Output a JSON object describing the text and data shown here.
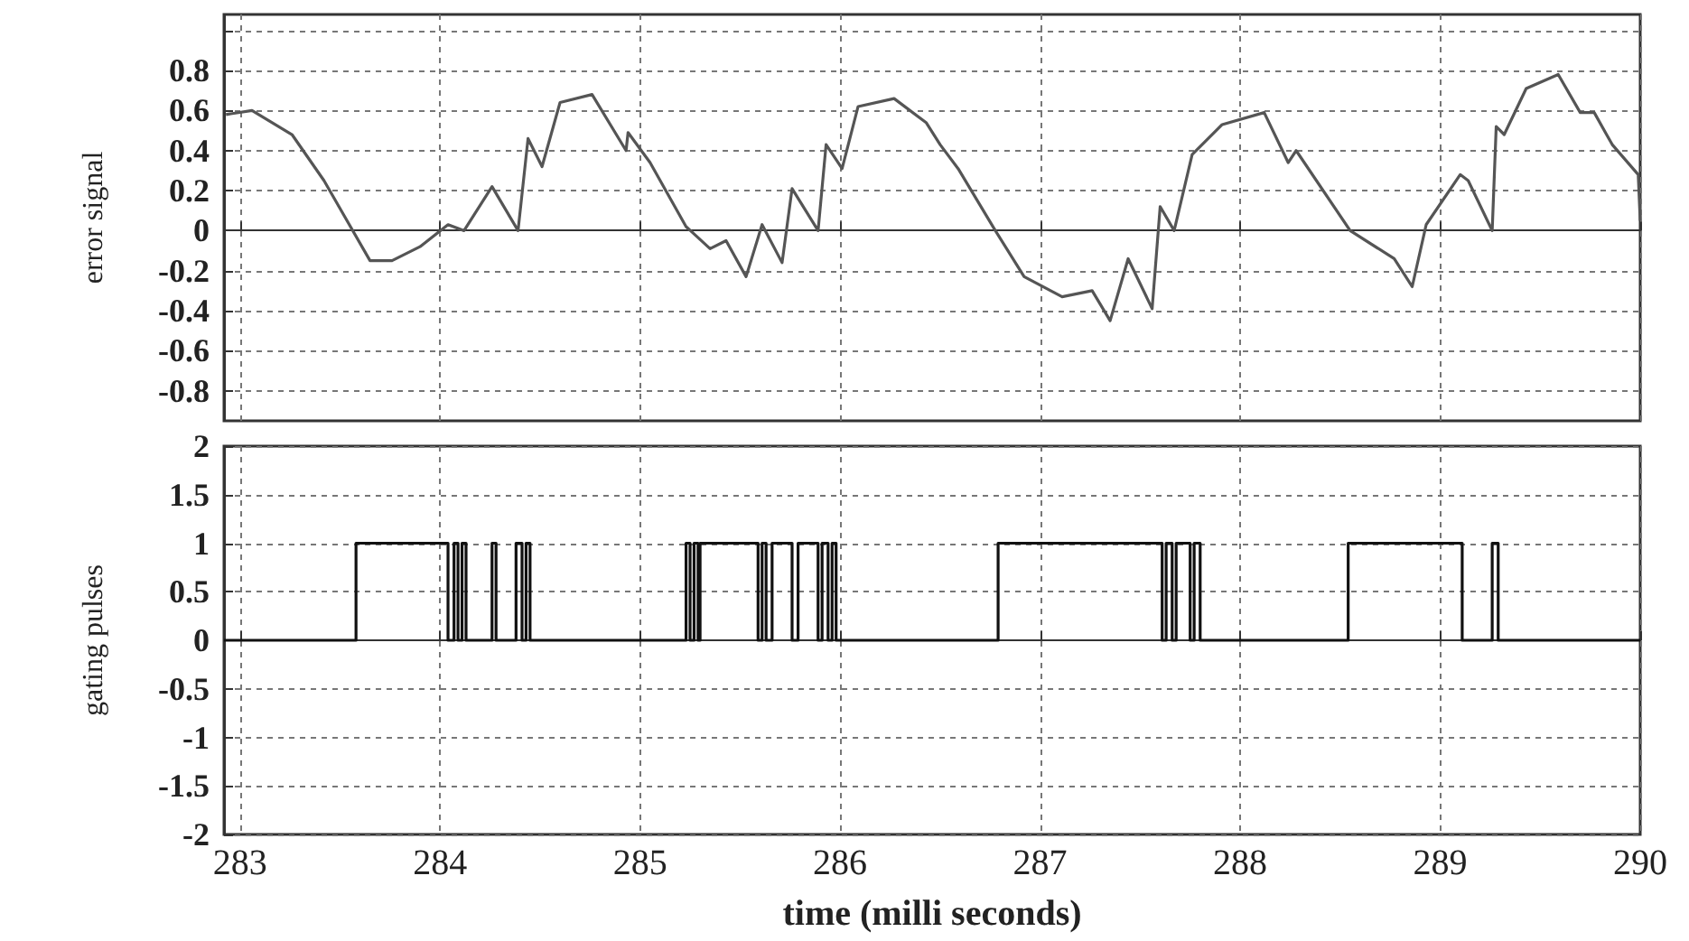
{
  "chart_data": [
    {
      "type": "line",
      "ylabel": "error signal",
      "color": "#555555",
      "grid": true,
      "line_style": "solid",
      "marker": "none",
      "tick_labels": "y",
      "xlim": [
        282.92,
        290
      ],
      "xticks": [
        283,
        284,
        285,
        286,
        287,
        288,
        289,
        290
      ],
      "ylim": [
        -0.95,
        1.08
      ],
      "yticks": [
        -0.8,
        -0.6,
        -0.4,
        -0.2,
        0,
        0.2,
        0.4,
        0.6,
        0.8,
        {
          "value": 1,
          "label": null
        }
      ],
      "x": [
        282.93,
        283.06,
        283.26,
        283.42,
        283.65,
        283.76,
        283.9,
        284.04,
        284.12,
        284.26,
        284.39,
        284.44,
        284.51,
        284.6,
        284.76,
        284.93,
        284.94,
        285.05,
        285.23,
        285.35,
        285.43,
        285.53,
        285.61,
        285.71,
        285.76,
        285.89,
        285.93,
        286.01,
        286.09,
        286.27,
        286.43,
        286.5,
        286.59,
        286.77,
        286.92,
        287.11,
        287.26,
        287.35,
        287.44,
        287.56,
        287.6,
        287.67,
        287.76,
        287.91,
        288.12,
        288.24,
        288.28,
        288.55,
        288.77,
        288.86,
        288.93,
        289.1,
        289.14,
        289.26,
        289.28,
        289.32,
        289.43,
        289.59,
        289.7,
        289.77,
        289.86,
        289.99,
        290
      ],
      "values": [
        0.58,
        0.6,
        0.48,
        0.25,
        -0.15,
        -0.15,
        -0.08,
        0.03,
        0,
        0.22,
        0,
        0.46,
        0.32,
        0.64,
        0.68,
        0.4,
        0.49,
        0.34,
        0.02,
        -0.09,
        -0.05,
        -0.23,
        0.03,
        -0.16,
        0.21,
        0,
        0.43,
        0.31,
        0.62,
        0.66,
        0.54,
        0.43,
        0.31,
        0.01,
        -0.23,
        -0.33,
        -0.3,
        -0.45,
        -0.14,
        -0.39,
        0.12,
        0,
        0.38,
        0.53,
        0.59,
        0.34,
        0.4,
        0,
        -0.14,
        -0.28,
        0.03,
        0.28,
        0.25,
        0,
        0.52,
        0.48,
        0.71,
        0.78,
        0.59,
        0.59,
        0.43,
        0.28,
        0.05
      ]
    },
    {
      "type": "step",
      "ylabel": "gating pulses",
      "xlabel": "time (milli seconds)",
      "color": "#111111",
      "grid": true,
      "line_style": "solid",
      "marker": "none",
      "xlim": [
        282.92,
        290
      ],
      "xticks": [
        283,
        284,
        285,
        286,
        287,
        288,
        289,
        290
      ],
      "ylim": [
        -2,
        2
      ],
      "yticks": [
        -2,
        -1.5,
        -1,
        -0.5,
        0,
        0.5,
        1,
        1.5,
        2
      ],
      "x": [
        282.92,
        283.58,
        284.04,
        284.07,
        284.09,
        284.11,
        284.13,
        284.26,
        284.28,
        284.38,
        284.41,
        284.43,
        284.45,
        285.23,
        285.25,
        285.27,
        285.29,
        285.3,
        285.59,
        285.61,
        285.63,
        285.66,
        285.76,
        285.79,
        285.89,
        285.91,
        285.94,
        285.96,
        285.98,
        286.79,
        287.61,
        287.63,
        287.66,
        287.68,
        287.75,
        287.77,
        287.8,
        288.54,
        289.11,
        289.26,
        289.29,
        290
      ],
      "values": [
        0,
        1,
        0,
        1,
        0,
        1,
        0,
        1,
        0,
        1,
        0,
        1,
        0,
        1,
        0,
        1,
        0,
        1,
        0,
        1,
        0,
        1,
        0,
        1,
        0,
        1,
        0,
        1,
        0,
        1,
        0,
        1,
        0,
        1,
        0,
        1,
        0,
        1,
        0,
        1,
        0,
        0
      ]
    }
  ]
}
